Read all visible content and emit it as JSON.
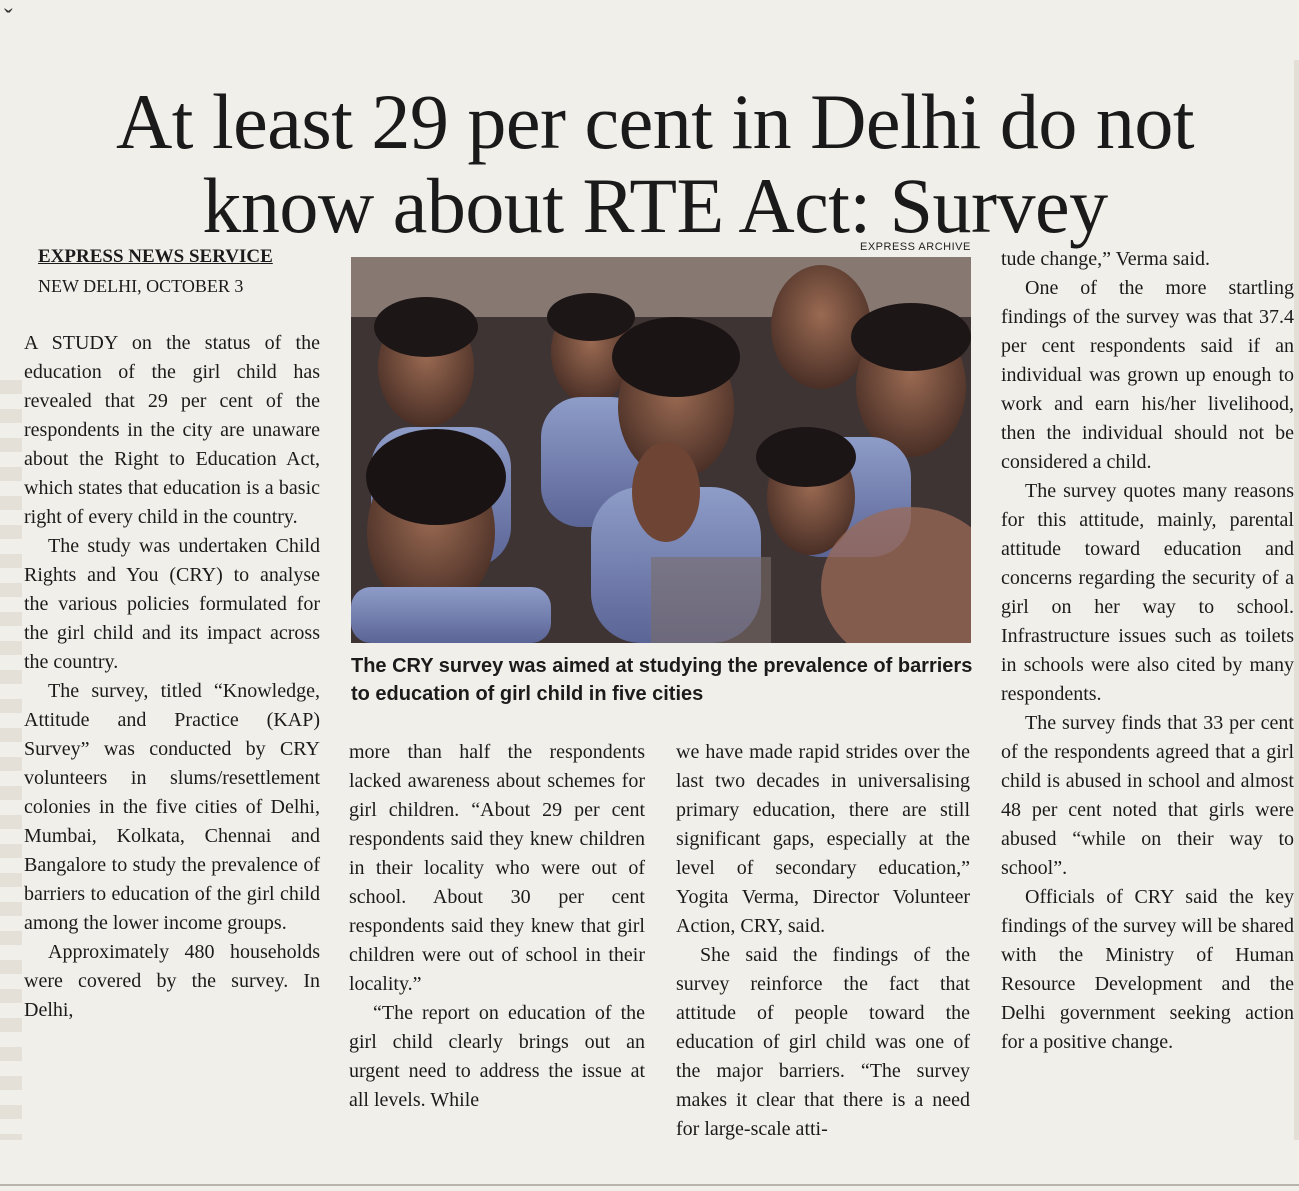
{
  "headline": "At least 29 per cent in Delhi do not know about RTE Act: Survey",
  "byline": {
    "service": "EXPRESS NEWS SERVICE",
    "dateline": "NEW DELHI, OCTOBER 3"
  },
  "photo": {
    "credit": "EXPRESS ARCHIVE",
    "caption": "The CRY survey was aimed at studying the prevalence of barriers to education of girl child in five cities"
  },
  "columns": {
    "col1": [
      "A STUDY on the status of the education of the girl child has revealed that 29 per cent of the respondents in the city are unaware about the Right to Education Act, which states that education is a basic right of every child in the country.",
      "The study was undertaken Child Rights and You (CRY) to analyse the various policies formulated for the girl child and its impact across the country.",
      "The survey, titled “Knowledge, Attitude and Practice (KAP) Survey” was conducted by CRY volunteers in slums/resettlement colonies in the five cities of Delhi, Mumbai, Kolkata, Chennai and Bangalore to study the prevalence of barriers to education of the girl child among the lower income groups.",
      "Approximately 480 households were covered by the survey. In Delhi,"
    ],
    "col2": [
      "more than half the respondents lacked awareness about schemes for girl children. “About 29 per cent respondents said they knew children in their locality who were out of school. About 30 per cent respondents said they knew that girl children were out of school in their locality.”",
      "“The report on education of the girl child clearly brings out an urgent need to address the issue at all levels. While"
    ],
    "col3": [
      "we have made rapid strides over the last two decades in universalising primary education, there are still significant gaps, especially at the level of secondary education,” Yogita Verma, Director Volunteer Action, CRY, said.",
      "She said the findings of the survey reinforce the fact that attitude of people toward the education of girl child was one of the major barriers. “The survey makes it clear that there is a need for large-scale atti-"
    ],
    "col4": [
      "tude change,” Verma said.",
      "One of the more startling findings of the survey was that 37.4 per cent respondents said if an individual was grown up enough to work and earn his/her livelihood, then the individual should not be considered a child.",
      "The survey quotes many reasons for this attitude, mainly, parental attitude toward education and concerns regarding the security of a girl on her way to school. Infrastructure issues such as toilets in schools were also cited by many respondents.",
      "The survey finds that 33 per cent of the respondents agreed that a girl child is abused in school and almost 48 per cent noted that girls were abused “while on their way to school”.",
      "Officials of CRY said the key findings of the survey will be shared with the Ministry of Human Resource Development and the Delhi government seeking action for a positive change."
    ]
  }
}
